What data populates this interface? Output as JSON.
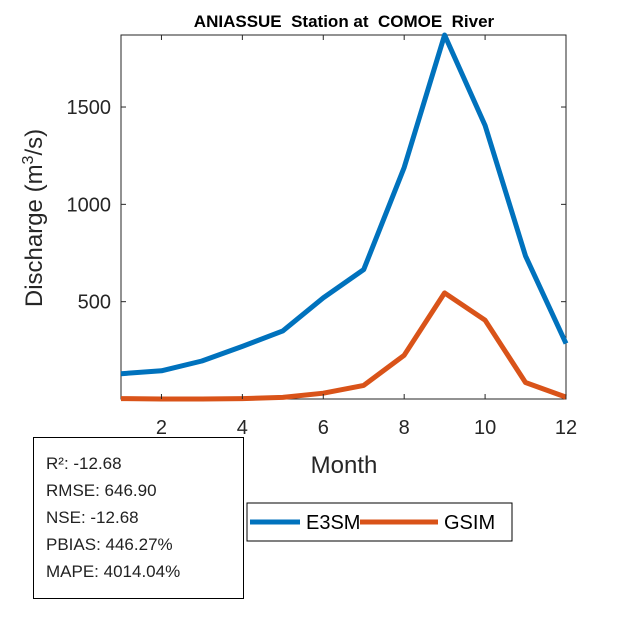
{
  "chart_data": {
    "type": "line",
    "title": "ANIASSUE  Station at  COMOE  River",
    "xlabel": "Month",
    "ylabel_main": "Discharge (m",
    "ylabel_sup": "3",
    "ylabel_tail": "/s)",
    "xlim": [
      1,
      12
    ],
    "ylim": [
      0,
      1870
    ],
    "xticks": [
      2,
      4,
      6,
      8,
      10,
      12
    ],
    "yticks": [
      500,
      1000,
      1500
    ],
    "x": [
      1,
      2,
      3,
      4,
      5,
      6,
      7,
      8,
      9,
      10,
      11,
      12
    ],
    "series": [
      {
        "name": "E3SM",
        "color": "#0072bd",
        "values": [
          130,
          145,
          195,
          270,
          350,
          520,
          665,
          1190,
          1870,
          1405,
          735,
          285
        ]
      },
      {
        "name": "GSIM",
        "color": "#d95319",
        "values": [
          2,
          0,
          0,
          2,
          8,
          30,
          70,
          225,
          545,
          405,
          85,
          10
        ]
      }
    ]
  },
  "stats": [
    "R²: -12.68",
    "RMSE: 646.90",
    "NSE: -12.68",
    "PBIAS: 446.27%",
    "MAPE: 4014.04%"
  ]
}
